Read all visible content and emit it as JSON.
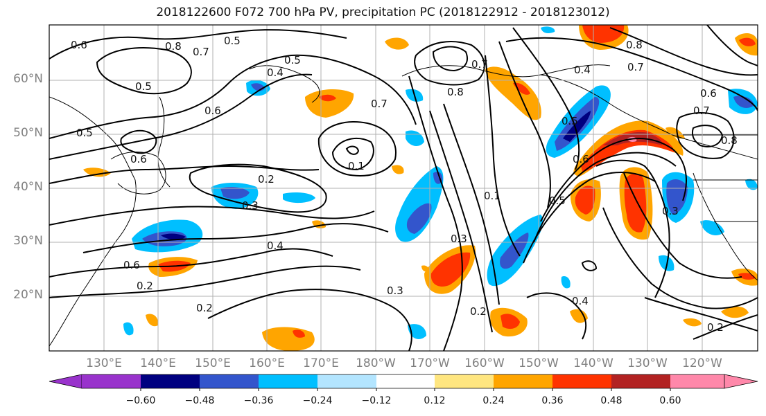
{
  "title": "2018122600 F072 700 hPa PV, precipitation PC (2018122912 - 2018123012)",
  "lat_ticks": [
    "60°N",
    "50°N",
    "40°N",
    "30°N",
    "20°N"
  ],
  "lon_ticks": [
    "130°E",
    "140°E",
    "150°E",
    "160°E",
    "170°E",
    "180°W",
    "170°W",
    "160°W",
    "150°W",
    "140°W",
    "130°W",
    "120°W"
  ],
  "colorbar": {
    "tick_labels": [
      "−0.60",
      "−0.48",
      "−0.36",
      "−0.24",
      "−0.12",
      "0.12",
      "0.24",
      "0.36",
      "0.48",
      "0.60"
    ],
    "colors": [
      "#9933cc",
      "#000080",
      "#3355cc",
      "#00bfff",
      "#b3e5ff",
      "#ffffff",
      "#ffe680",
      "#ffa500",
      "#ff3300",
      "#b22222",
      "#ff88aa"
    ]
  },
  "contour_labels": [
    {
      "text": "0.6"
    },
    {
      "text": "0.5"
    },
    {
      "text": "0.8"
    },
    {
      "text": "0.7"
    },
    {
      "text": "0.5"
    },
    {
      "text": "0.4"
    },
    {
      "text": "0.5"
    },
    {
      "text": "0.6"
    },
    {
      "text": "0.5"
    },
    {
      "text": "0.6"
    },
    {
      "text": "0.2"
    },
    {
      "text": "0.3"
    },
    {
      "text": "0.4"
    },
    {
      "text": "0.6"
    },
    {
      "text": "0.2"
    },
    {
      "text": "0.2"
    },
    {
      "text": "0.7"
    },
    {
      "text": "0.8"
    },
    {
      "text": "0.7"
    },
    {
      "text": "0.1"
    },
    {
      "text": "0.1"
    },
    {
      "text": "0.5"
    },
    {
      "text": "0.6"
    },
    {
      "text": "0.3"
    },
    {
      "text": "0.3"
    },
    {
      "text": "0.2"
    },
    {
      "text": "0.4"
    },
    {
      "text": "0.5"
    },
    {
      "text": "0.4"
    },
    {
      "text": "0.7"
    },
    {
      "text": "0.8"
    },
    {
      "text": "0.6"
    },
    {
      "text": "0.7"
    },
    {
      "text": "0.8"
    },
    {
      "text": "0.3"
    },
    {
      "text": "0.2"
    }
  ]
}
